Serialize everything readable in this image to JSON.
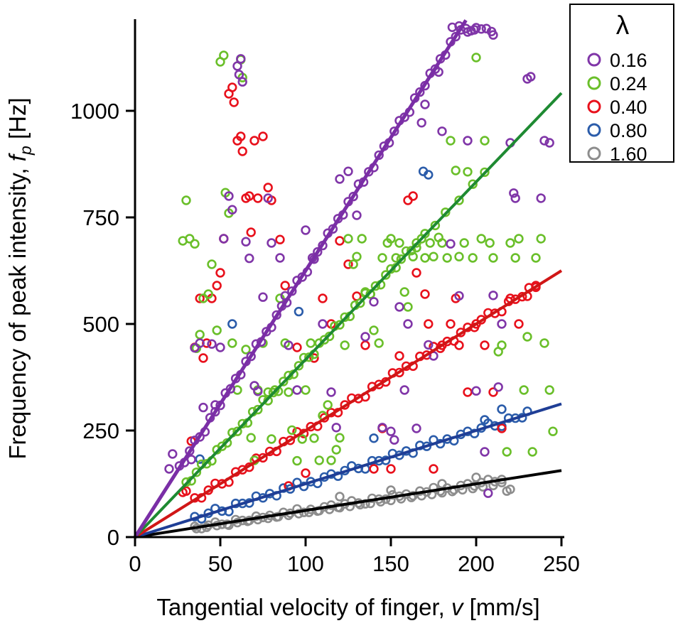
{
  "figure": {
    "background": "#ffffff",
    "xlabel": {
      "prefix": "Tangential velocity of finger, ",
      "var": "v",
      "suffix": " [mm/s]"
    },
    "ylabel": {
      "prefix": "Frequency of peak intensity, ",
      "var": "f",
      "sub": "p",
      "suffix": " [Hz]"
    }
  },
  "legend": {
    "title": "λ",
    "entries": [
      {
        "label": "0.16",
        "color": "#8036a8"
      },
      {
        "label": "0.24",
        "color": "#6abf2a"
      },
      {
        "label": "0.40",
        "color": "#e8111c"
      },
      {
        "label": "0.80",
        "color": "#2b5caa"
      },
      {
        "label": "1.60",
        "color": "#8d8d8d"
      }
    ]
  },
  "chart_data": {
    "type": "scatter",
    "title": "",
    "xlabel": "Tangential velocity of finger, v [mm/s]",
    "ylabel": "Frequency of peak intensity, f_p [Hz]",
    "xlim": [
      0,
      250
    ],
    "ylim": [
      0,
      1215
    ],
    "xticks": [
      0,
      50,
      100,
      150,
      200,
      250
    ],
    "yticks": [
      0,
      250,
      500,
      750,
      1000
    ],
    "legend_title": "λ",
    "series": [
      {
        "name": "0.16",
        "lambda": 0.16,
        "marker_color": "#8036a8",
        "line_color": "#7a2ea6",
        "fit_slope": 6.25,
        "fit_x_end": 194,
        "points_flat": [
          26,
          167,
          29,
          175,
          32,
          202,
          35,
          227,
          38,
          235,
          41,
          247,
          44,
          280,
          47,
          294,
          50,
          309,
          53,
          338,
          56,
          348,
          59,
          372,
          62,
          381,
          65,
          412,
          68,
          424,
          71,
          453,
          74,
          458,
          77,
          482,
          80,
          492,
          83,
          521,
          86,
          542,
          89,
          550,
          92,
          577,
          95,
          602,
          98,
          610,
          101,
          622,
          104,
          655,
          107,
          669,
          110,
          684,
          113,
          713,
          116,
          723,
          119,
          747,
          122,
          756,
          125,
          787,
          128,
          799,
          131,
          828,
          134,
          833,
          137,
          857,
          140,
          867,
          143,
          896,
          146,
          917,
          149,
          925,
          152,
          952,
          155,
          977,
          158,
          985,
          161,
          997,
          164,
          1030,
          167,
          1044,
          170,
          1059,
          173,
          1088,
          176,
          1098,
          179,
          1122,
          182,
          1131,
          185,
          1162,
          188,
          1174,
          191,
          1190,
          194,
          1193,
          197,
          1188,
          200,
          1195,
          203,
          1192,
          186,
          1196,
          190,
          1199,
          195,
          1185,
          199,
          1190,
          206,
          1193,
          209,
          1186,
          210,
          1178,
          20,
          160,
          22,
          195,
          33,
          182,
          35,
          444,
          38,
          455,
          40,
          304,
          45,
          453,
          47,
          310,
          50,
          445,
          52,
          700,
          55,
          800,
          57,
          768,
          60,
          1105,
          61,
          1085,
          62,
          1122,
          63,
          1068,
          65,
          693,
          67,
          654,
          70,
          355,
          72,
          342,
          75,
          563,
          78,
          795,
          80,
          690,
          85,
          655,
          88,
          566,
          90,
          450,
          95,
          345,
          100,
          720,
          105,
          652,
          110,
          500,
          115,
          340,
          118,
          257,
          120,
          840,
          125,
          858,
          130,
          755,
          135,
          470,
          140,
          552,
          145,
          257,
          150,
          248,
          152,
          228,
          155,
          540,
          158,
          345,
          160,
          500,
          165,
          255,
          168,
          972,
          170,
          1015,
          172,
          451,
          175,
          425,
          178,
          1091,
          180,
          952,
          185,
          688,
          190,
          566,
          195,
          930,
          200,
          343,
          205,
          200,
          207,
          103,
          210,
          567,
          213,
          352,
          215,
          500,
          220,
          925,
          222,
          807,
          223,
          795,
          230,
          1075,
          232,
          1080,
          238,
          795,
          240,
          930,
          243,
          925
        ]
      },
      {
        "name": "0.24",
        "lambda": 0.24,
        "marker_color": "#6abf2a",
        "line_color": "#1e8a32",
        "fit_slope": 4.1667,
        "fit_x_end": 250,
        "points_flat": [
          30,
          129,
          33,
          132,
          36,
          152,
          39,
          171,
          42,
          172,
          45,
          179,
          48,
          205,
          51,
          213,
          54,
          221,
          57,
          245,
          60,
          248,
          63,
          266,
          66,
          268,
          69,
          294,
          72,
          299,
          75,
          322,
          78,
          320,
          81,
          339,
          84,
          342,
          87,
          365,
          90,
          379,
          93,
          382,
          96,
          402,
          99,
          421,
          102,
          422,
          105,
          429,
          108,
          455,
          111,
          463,
          114,
          471,
          117,
          495,
          120,
          498,
          123,
          516,
          126,
          518,
          129,
          544,
          132,
          549,
          135,
          572,
          138,
          570,
          141,
          589,
          144,
          592,
          147,
          615,
          150,
          629,
          153,
          632,
          156,
          652,
          159,
          671,
          162,
          672,
          165,
          679,
          170,
          712,
          176,
          731,
          182,
          762,
          190,
          790,
          198,
          828,
          205,
          856,
          28,
          695,
          30,
          790,
          32,
          700,
          35,
          688,
          36,
          443,
          38,
          475,
          40,
          560,
          43,
          570,
          45,
          640,
          48,
          485,
          50,
          1115,
          52,
          1130,
          53,
          808,
          55,
          760,
          57,
          455,
          60,
          345,
          62,
          1120,
          63,
          1078,
          65,
          440,
          68,
          233,
          70,
          180,
          72,
          345,
          75,
          455,
          78,
          340,
          80,
          230,
          82,
          345,
          85,
          560,
          88,
          455,
          90,
          340,
          92,
          251,
          95,
          179,
          98,
          230,
          100,
          345,
          103,
          455,
          105,
          232,
          108,
          180,
          110,
          285,
          113,
          310,
          115,
          180,
          118,
          205,
          120,
          233,
          123,
          450,
          125,
          700,
          128,
          640,
          130,
          658,
          133,
          700,
          135,
          575,
          138,
          570,
          140,
          485,
          143,
          455,
          145,
          655,
          148,
          690,
          150,
          700,
          153,
          655,
          155,
          690,
          158,
          575,
          160,
          540,
          163,
          658,
          165,
          690,
          168,
          700,
          170,
          655,
          173,
          690,
          175,
          658,
          178,
          703,
          180,
          690,
          183,
          655,
          185,
          930,
          188,
          860,
          190,
          658,
          193,
          690,
          195,
          857,
          198,
          655,
          200,
          1125,
          203,
          700,
          205,
          930,
          208,
          690,
          210,
          655,
          213,
          435,
          215,
          450,
          218,
          200,
          220,
          690,
          223,
          655,
          225,
          700,
          228,
          345,
          230,
          470,
          233,
          200,
          235,
          655,
          238,
          700,
          240,
          455,
          243,
          345,
          245,
          248
        ]
      },
      {
        "name": "0.40",
        "lambda": 0.4,
        "marker_color": "#e8111c",
        "line_color": "#d01616",
        "fit_slope": 2.5,
        "fit_x_end": 250,
        "points_flat": [
          35,
          92,
          39,
          92,
          43,
          110,
          47,
          126,
          51,
          125,
          55,
          129,
          59,
          153,
          63,
          158,
          67,
          164,
          71,
          185,
          75,
          186,
          79,
          201,
          83,
          201,
          87,
          224,
          91,
          227,
          95,
          247,
          99,
          243,
          103,
          259,
          107,
          260,
          111,
          280,
          115,
          292,
          119,
          292,
          123,
          310,
          127,
          326,
          131,
          325,
          135,
          329,
          139,
          353,
          143,
          358,
          147,
          364,
          151,
          385,
          155,
          386,
          159,
          401,
          163,
          401,
          167,
          424,
          171,
          427,
          175,
          447,
          179,
          443,
          183,
          459,
          187,
          460,
          191,
          480,
          195,
          492,
          199,
          492,
          203,
          510,
          207,
          526,
          211,
          525,
          215,
          529,
          219,
          553,
          223,
          558,
          227,
          564,
          231,
          585,
          235,
          586,
          28,
          105,
          30,
          108,
          33,
          225,
          35,
          445,
          38,
          560,
          40,
          420,
          42,
          455,
          45,
          560,
          48,
          590,
          50,
          620,
          52,
          700,
          55,
          1040,
          57,
          1055,
          58,
          1020,
          60,
          930,
          62,
          940,
          63,
          905,
          65,
          795,
          67,
          800,
          68,
          715,
          70,
          930,
          72,
          795,
          75,
          940,
          78,
          820,
          80,
          790,
          85,
          698,
          88,
          590,
          90,
          120,
          95,
          445,
          100,
          150,
          105,
          420,
          110,
          560,
          115,
          500,
          120,
          695,
          125,
          640,
          130,
          565,
          135,
          450,
          140,
          160,
          145,
          255,
          150,
          160,
          155,
          425,
          160,
          790,
          163,
          800,
          165,
          620,
          170,
          570,
          172,
          500,
          175,
          160,
          180,
          450,
          185,
          500,
          188,
          560,
          190,
          450,
          195,
          340,
          200,
          500,
          205,
          450,
          210,
          340,
          215,
          255,
          220,
          560,
          225,
          500,
          230,
          565,
          235,
          590
        ]
      },
      {
        "name": "0.80",
        "lambda": 0.8,
        "marker_color": "#2b5caa",
        "line_color": "#1f3e96",
        "fit_slope": 1.25,
        "fit_x_end": 250,
        "points_flat": [
          35,
          48,
          39,
          43,
          43,
          56,
          47,
          67,
          51,
          61,
          55,
          60,
          59,
          79,
          63,
          79,
          67,
          80,
          71,
          96,
          75,
          92,
          79,
          102,
          83,
          97,
          87,
          115,
          91,
          113,
          95,
          128,
          99,
          119,
          103,
          130,
          107,
          126,
          111,
          141,
          115,
          148,
          119,
          143,
          123,
          156,
          127,
          167,
          131,
          161,
          135,
          160,
          139,
          179,
          143,
          179,
          147,
          180,
          151,
          196,
          155,
          192,
          159,
          202,
          163,
          197,
          167,
          215,
          171,
          213,
          175,
          228,
          179,
          219,
          183,
          230,
          187,
          226,
          191,
          241,
          195,
          248,
          199,
          243,
          203,
          256,
          207,
          267,
          211,
          261,
          215,
          260,
          219,
          279,
          223,
          279,
          227,
          280,
          230,
          295,
          38,
          183,
          57,
          500,
          96,
          529,
          140,
          232,
          169,
          858,
          172,
          850,
          205,
          275,
          215,
          300
        ]
      },
      {
        "name": "1.60",
        "lambda": 1.6,
        "marker_color": "#8d8d8d",
        "line_color": "#000000",
        "fit_slope": 0.625,
        "fit_x_end": 250,
        "points_flat": [
          35,
          25,
          39,
          20,
          43,
          28,
          47,
          35,
          51,
          30,
          55,
          28,
          59,
          41,
          63,
          39,
          67,
          39,
          71,
          49,
          75,
          46,
          79,
          51,
          83,
          47,
          87,
          58,
          91,
          56,
          95,
          66,
          99,
          58,
          103,
          65,
          107,
          61,
          111,
          71,
          115,
          75,
          119,
          70,
          123,
          78,
          127,
          85,
          131,
          80,
          135,
          78,
          139,
          91,
          143,
          89,
          147,
          89,
          151,
          99,
          155,
          96,
          159,
          101,
          163,
          97,
          167,
          108,
          171,
          106,
          175,
          116,
          179,
          108,
          183,
          115,
          187,
          111,
          191,
          121,
          195,
          125,
          199,
          120,
          203,
          128,
          207,
          135,
          211,
          130,
          215,
          128,
          36,
          20,
          42,
          23,
          48,
          27,
          54,
          30,
          60,
          34,
          66,
          37,
          72,
          41,
          78,
          44,
          84,
          48,
          90,
          51,
          96,
          55,
          102,
          58,
          108,
          62,
          114,
          65,
          120,
          69,
          126,
          72,
          132,
          76,
          138,
          79,
          144,
          83,
          150,
          86,
          156,
          90,
          162,
          93,
          168,
          97,
          174,
          100,
          180,
          104,
          186,
          107,
          192,
          111,
          198,
          114,
          204,
          118,
          210,
          121,
          120,
          95,
          150,
          110,
          180,
          125,
          200,
          140,
          215,
          135,
          218,
          108,
          220,
          112
        ]
      }
    ]
  }
}
